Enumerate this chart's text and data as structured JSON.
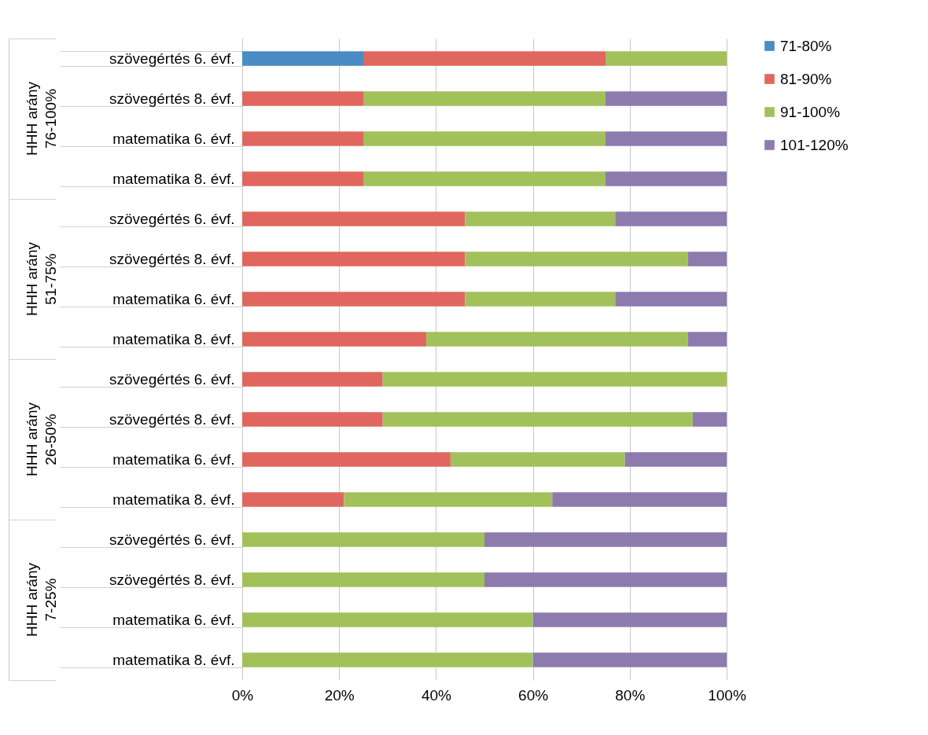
{
  "chart_data": {
    "type": "bar",
    "orientation": "horizontal",
    "stacked": true,
    "categories": [
      "szövegértés 6. évf.",
      "szövegértés 8. évf.",
      "matematika 6. évf.",
      "matematika 8. évf.",
      "szövegértés 6. évf.",
      "szövegértés 8. évf.",
      "matematika 6. évf.",
      "matematika 8. évf.",
      "szövegértés 6. évf.",
      "szövegértés 8. évf.",
      "matematika 6. évf.",
      "matematika 8. évf.",
      "szövegértés 6. évf.",
      "szövegértés 8. évf.",
      "matematika 6. évf.",
      "matematika 8. évf."
    ],
    "series": [
      {
        "name": "71-80%",
        "color": "#4a8cc4",
        "values": [
          25,
          null,
          null,
          null,
          null,
          null,
          null,
          null,
          null,
          null,
          null,
          null,
          null,
          null,
          null,
          null
        ]
      },
      {
        "name": "81-90%",
        "color": "#e0675f",
        "values": [
          50,
          25,
          25,
          25,
          46,
          46,
          46,
          38,
          29,
          29,
          43,
          21,
          null,
          null,
          null,
          null
        ]
      },
      {
        "name": "91-100%",
        "color": "#a2c15a",
        "values": [
          25,
          50,
          50,
          50,
          31,
          46,
          31,
          54,
          71,
          64,
          36,
          43,
          50,
          50,
          60,
          60
        ]
      },
      {
        "name": "101-120%",
        "color": "#8e7bae",
        "values": [
          null,
          25,
          25,
          25,
          23,
          8,
          23,
          8,
          null,
          7,
          21,
          36,
          50,
          50,
          40,
          40
        ]
      }
    ],
    "xlim": [
      0,
      100
    ],
    "xticks": [
      {
        "value": 0,
        "label": "0%"
      },
      {
        "value": 20,
        "label": "20%"
      },
      {
        "value": 40,
        "label": "40%"
      },
      {
        "value": 60,
        "label": "60%"
      },
      {
        "value": 80,
        "label": "80%"
      },
      {
        "value": 100,
        "label": "100%"
      }
    ],
    "annotations": [
      "HHH arány 76-100%",
      "HHH arány 51-75%",
      "HHH arány 26-50%",
      "HHH arány 7-25%"
    ],
    "grid": "x",
    "legend": "right"
  }
}
